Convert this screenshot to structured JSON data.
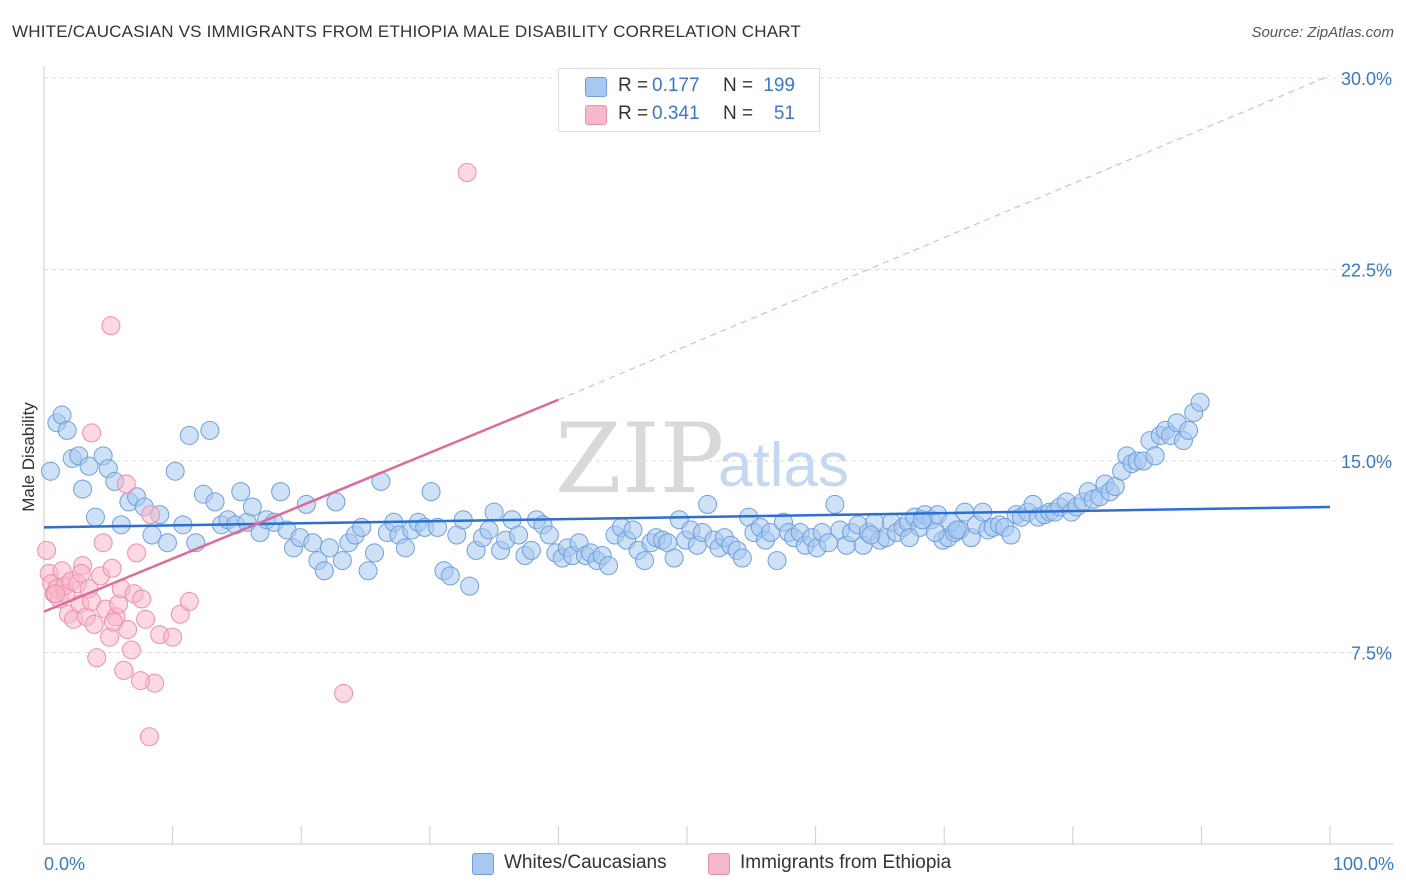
{
  "title": "WHITE/CAUCASIAN VS IMMIGRANTS FROM ETHIOPIA MALE DISABILITY CORRELATION CHART",
  "source": "Source: ZipAtlas.com",
  "watermark": {
    "zip": "ZIP",
    "atlas": "atlas"
  },
  "legend": {
    "r_label": "R =",
    "n_label": "N =",
    "rows": [
      {
        "name": "Whites/Caucasians",
        "r": "0.177",
        "n": "199"
      },
      {
        "name": "Immigrants from Ethiopia",
        "r": "0.341",
        "n": "51"
      }
    ]
  },
  "chart_data": {
    "type": "scatter",
    "ylabel": "Male Disability",
    "xlim": [
      0,
      100
    ],
    "ylim": [
      0,
      30
    ],
    "x_tick_labels": {
      "min": "0.0%",
      "max": "100.0%"
    },
    "y_ticks": [
      7.5,
      15.0,
      22.5,
      30.0
    ],
    "y_tick_labels": [
      "7.5%",
      "15.0%",
      "22.5%",
      "30.0%"
    ],
    "grid": true,
    "colors": {
      "blue_fill": "#a8c8f0",
      "blue_stroke": "#6f9fdc",
      "blue_line": "#2a6fd1",
      "pink_fill": "#f7b8cb",
      "pink_stroke": "#ee8fab",
      "pink_line": "#e0699a",
      "grid": "#dddddd",
      "tick": "#3a78c9"
    },
    "series": [
      {
        "name": "Whites/Caucasians",
        "r": 0.177,
        "n": 199,
        "trend": {
          "x0": 0,
          "y0": 12.4,
          "x1": 100,
          "y1": 13.2
        },
        "points": [
          [
            0.5,
            14.6
          ],
          [
            1.0,
            16.5
          ],
          [
            1.4,
            16.8
          ],
          [
            1.8,
            16.2
          ],
          [
            2.2,
            15.1
          ],
          [
            2.7,
            15.2
          ],
          [
            3.0,
            13.9
          ],
          [
            3.5,
            14.8
          ],
          [
            4.0,
            12.8
          ],
          [
            4.6,
            15.2
          ],
          [
            5.0,
            14.7
          ],
          [
            5.5,
            14.2
          ],
          [
            6.0,
            12.5
          ],
          [
            6.6,
            13.4
          ],
          [
            7.2,
            13.6
          ],
          [
            7.8,
            13.2
          ],
          [
            8.4,
            12.1
          ],
          [
            9.0,
            12.9
          ],
          [
            9.6,
            11.8
          ],
          [
            10.2,
            14.6
          ],
          [
            10.8,
            12.5
          ],
          [
            11.3,
            16.0
          ],
          [
            11.8,
            11.8
          ],
          [
            12.4,
            13.7
          ],
          [
            12.9,
            16.2
          ],
          [
            13.3,
            13.4
          ],
          [
            13.8,
            12.5
          ],
          [
            14.3,
            12.7
          ],
          [
            14.9,
            12.5
          ],
          [
            15.3,
            13.8
          ],
          [
            15.8,
            12.6
          ],
          [
            16.2,
            13.2
          ],
          [
            16.8,
            12.2
          ],
          [
            17.3,
            12.7
          ],
          [
            17.9,
            12.6
          ],
          [
            18.4,
            13.8
          ],
          [
            18.9,
            12.3
          ],
          [
            19.4,
            11.6
          ],
          [
            19.9,
            12.0
          ],
          [
            20.4,
            13.3
          ],
          [
            20.9,
            11.8
          ],
          [
            21.3,
            11.1
          ],
          [
            21.8,
            10.7
          ],
          [
            22.2,
            11.6
          ],
          [
            22.7,
            13.4
          ],
          [
            23.2,
            11.1
          ],
          [
            23.7,
            11.8
          ],
          [
            24.2,
            12.1
          ],
          [
            24.7,
            12.4
          ],
          [
            25.2,
            10.7
          ],
          [
            25.7,
            11.4
          ],
          [
            26.2,
            14.2
          ],
          [
            26.7,
            12.2
          ],
          [
            27.2,
            12.6
          ],
          [
            27.6,
            12.1
          ],
          [
            28.1,
            11.6
          ],
          [
            28.6,
            12.3
          ],
          [
            29.1,
            12.6
          ],
          [
            29.6,
            12.4
          ],
          [
            30.1,
            13.8
          ],
          [
            30.6,
            12.4
          ],
          [
            31.1,
            10.7
          ],
          [
            31.6,
            10.5
          ],
          [
            32.1,
            12.1
          ],
          [
            32.6,
            12.7
          ],
          [
            33.1,
            10.1
          ],
          [
            33.6,
            11.5
          ],
          [
            34.1,
            12.0
          ],
          [
            34.6,
            12.3
          ],
          [
            35.0,
            13.0
          ],
          [
            35.5,
            11.5
          ],
          [
            35.9,
            11.9
          ],
          [
            36.4,
            12.7
          ],
          [
            36.9,
            12.1
          ],
          [
            37.4,
            11.3
          ],
          [
            37.9,
            11.5
          ],
          [
            38.3,
            12.7
          ],
          [
            38.8,
            12.5
          ],
          [
            39.3,
            12.1
          ],
          [
            39.8,
            11.4
          ],
          [
            40.3,
            11.2
          ],
          [
            40.7,
            11.6
          ],
          [
            41.1,
            11.3
          ],
          [
            41.6,
            11.8
          ],
          [
            42.1,
            11.3
          ],
          [
            42.5,
            11.4
          ],
          [
            43.0,
            11.1
          ],
          [
            43.4,
            11.3
          ],
          [
            43.9,
            10.9
          ],
          [
            44.4,
            12.1
          ],
          [
            44.9,
            12.4
          ],
          [
            45.3,
            11.9
          ],
          [
            45.8,
            12.3
          ],
          [
            46.2,
            11.5
          ],
          [
            46.7,
            11.1
          ],
          [
            47.2,
            11.8
          ],
          [
            47.6,
            12.0
          ],
          [
            48.1,
            11.9
          ],
          [
            48.5,
            11.8
          ],
          [
            49.0,
            11.2
          ],
          [
            49.4,
            12.7
          ],
          [
            49.9,
            11.9
          ],
          [
            50.3,
            12.3
          ],
          [
            50.8,
            11.7
          ],
          [
            51.2,
            12.2
          ],
          [
            51.6,
            13.3
          ],
          [
            52.1,
            11.9
          ],
          [
            52.5,
            11.6
          ],
          [
            52.9,
            12.0
          ],
          [
            53.4,
            11.7
          ],
          [
            53.9,
            11.5
          ],
          [
            54.3,
            11.2
          ],
          [
            54.8,
            12.8
          ],
          [
            55.2,
            12.2
          ],
          [
            55.7,
            12.4
          ],
          [
            56.1,
            11.9
          ],
          [
            56.5,
            12.2
          ],
          [
            57.0,
            11.1
          ],
          [
            57.5,
            12.6
          ],
          [
            57.9,
            12.2
          ],
          [
            58.3,
            12.0
          ],
          [
            58.8,
            12.2
          ],
          [
            59.2,
            11.7
          ],
          [
            59.7,
            12.0
          ],
          [
            60.1,
            11.6
          ],
          [
            60.5,
            12.2
          ],
          [
            61.0,
            11.8
          ],
          [
            61.5,
            13.3
          ],
          [
            61.9,
            12.3
          ],
          [
            62.4,
            11.7
          ],
          [
            62.8,
            12.2
          ],
          [
            63.3,
            12.5
          ],
          [
            63.7,
            11.7
          ],
          [
            64.1,
            12.2
          ],
          [
            64.6,
            12.6
          ],
          [
            65.0,
            11.9
          ],
          [
            65.5,
            12.0
          ],
          [
            65.9,
            12.6
          ],
          [
            66.3,
            12.2
          ],
          [
            66.8,
            12.4
          ],
          [
            67.2,
            12.6
          ],
          [
            67.7,
            12.8
          ],
          [
            68.1,
            12.4
          ],
          [
            68.5,
            12.9
          ],
          [
            69.0,
            12.7
          ],
          [
            69.5,
            12.9
          ],
          [
            69.9,
            11.9
          ],
          [
            70.3,
            12.0
          ],
          [
            70.8,
            12.2
          ],
          [
            71.2,
            12.3
          ],
          [
            71.6,
            13.0
          ],
          [
            72.1,
            12.0
          ],
          [
            72.5,
            12.5
          ],
          [
            73.0,
            13.0
          ],
          [
            73.4,
            12.3
          ],
          [
            73.8,
            12.4
          ],
          [
            74.3,
            12.5
          ],
          [
            74.7,
            12.4
          ],
          [
            75.2,
            12.1
          ],
          [
            75.6,
            12.9
          ],
          [
            76.0,
            12.8
          ],
          [
            76.5,
            13.0
          ],
          [
            76.9,
            13.3
          ],
          [
            77.3,
            12.8
          ],
          [
            77.8,
            12.9
          ],
          [
            78.2,
            13.0
          ],
          [
            78.6,
            13.0
          ],
          [
            79.0,
            13.2
          ],
          [
            79.5,
            13.4
          ],
          [
            79.9,
            13.0
          ],
          [
            80.3,
            13.2
          ],
          [
            80.8,
            13.4
          ],
          [
            81.2,
            13.8
          ],
          [
            81.6,
            13.5
          ],
          [
            82.1,
            13.6
          ],
          [
            82.5,
            14.1
          ],
          [
            82.9,
            13.8
          ],
          [
            83.3,
            14.0
          ],
          [
            83.8,
            14.6
          ],
          [
            84.2,
            15.2
          ],
          [
            84.6,
            14.9
          ],
          [
            85.0,
            15.0
          ],
          [
            85.5,
            15.0
          ],
          [
            86.0,
            15.8
          ],
          [
            86.4,
            15.2
          ],
          [
            86.8,
            16.0
          ],
          [
            87.2,
            16.2
          ],
          [
            87.6,
            16.0
          ],
          [
            88.1,
            16.5
          ],
          [
            88.6,
            15.8
          ],
          [
            89.0,
            16.2
          ],
          [
            89.4,
            16.9
          ],
          [
            89.9,
            17.3
          ],
          [
            67.3,
            12.0
          ],
          [
            68.3,
            12.7
          ],
          [
            69.3,
            12.2
          ],
          [
            70.5,
            12.6
          ],
          [
            71.0,
            12.3
          ],
          [
            64.3,
            12.1
          ]
        ]
      },
      {
        "name": "Immigrants from Ethiopia",
        "r": 0.341,
        "n": 51,
        "trend": {
          "x0": 0,
          "y0": 9.1,
          "x1": 40,
          "y1": 17.4,
          "dash_x1": 100,
          "dash_y1": 30.1
        },
        "points": [
          [
            0.2,
            11.5
          ],
          [
            0.4,
            10.6
          ],
          [
            0.6,
            10.2
          ],
          [
            0.8,
            9.8
          ],
          [
            1.0,
            10.0
          ],
          [
            1.2,
            9.6
          ],
          [
            1.4,
            10.7
          ],
          [
            1.6,
            10.1
          ],
          [
            1.7,
            9.8
          ],
          [
            1.9,
            9.0
          ],
          [
            2.1,
            10.3
          ],
          [
            2.3,
            8.8
          ],
          [
            2.6,
            10.2
          ],
          [
            2.8,
            9.4
          ],
          [
            3.0,
            10.9
          ],
          [
            3.3,
            8.9
          ],
          [
            3.5,
            10.0
          ],
          [
            3.7,
            9.5
          ],
          [
            3.9,
            8.6
          ],
          [
            4.1,
            7.3
          ],
          [
            4.4,
            10.5
          ],
          [
            4.6,
            11.8
          ],
          [
            4.8,
            9.2
          ],
          [
            5.1,
            8.1
          ],
          [
            5.3,
            10.8
          ],
          [
            5.6,
            8.9
          ],
          [
            5.8,
            9.4
          ],
          [
            6.0,
            10.0
          ],
          [
            6.2,
            6.8
          ],
          [
            6.5,
            8.4
          ],
          [
            6.8,
            7.6
          ],
          [
            7.0,
            9.8
          ],
          [
            7.2,
            11.4
          ],
          [
            7.6,
            9.6
          ],
          [
            7.9,
            8.8
          ],
          [
            8.3,
            12.9
          ],
          [
            8.6,
            6.3
          ],
          [
            9.0,
            8.2
          ],
          [
            10.0,
            8.1
          ],
          [
            10.6,
            9.0
          ],
          [
            11.3,
            9.5
          ],
          [
            5.2,
            20.3
          ],
          [
            3.7,
            16.1
          ],
          [
            6.4,
            14.1
          ],
          [
            8.2,
            4.2
          ],
          [
            23.3,
            5.9
          ],
          [
            32.9,
            26.3
          ],
          [
            0.9,
            9.8
          ],
          [
            2.9,
            10.6
          ],
          [
            5.4,
            8.7
          ],
          [
            7.5,
            6.4
          ]
        ]
      }
    ]
  }
}
